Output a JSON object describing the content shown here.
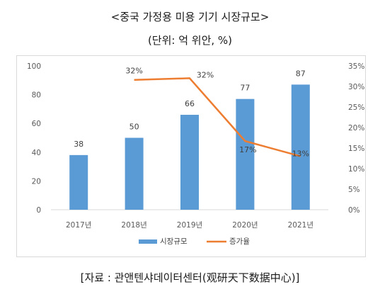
{
  "header": {
    "title": "<중국 가정용 미용 기기 시장규모>",
    "unit": "(단위: 억 위안, %)"
  },
  "footer": {
    "source": "[자료 : 관앤텐샤데이터센터(观研天下数据中心)]"
  },
  "colors": {
    "bar": "#5b9bd5",
    "line": "#ed7d31",
    "grid": "#d9d9d9"
  },
  "chart_data": {
    "type": "bar",
    "categories": [
      "2017년",
      "2018년",
      "2019년",
      "2020년",
      "2021년"
    ],
    "series": [
      {
        "name": "시장규모",
        "type": "bar",
        "axis": "left",
        "values": [
          38,
          50,
          66,
          77,
          87
        ],
        "labels": [
          "38",
          "50",
          "66",
          "77",
          "87"
        ]
      },
      {
        "name": "증가율",
        "type": "line",
        "axis": "right",
        "values": [
          null,
          31.6,
          32,
          16.7,
          13
        ],
        "labels": [
          null,
          "32%",
          "32%",
          "17%",
          "13%"
        ]
      }
    ],
    "y_left": {
      "min": 0,
      "max": 100,
      "step": 20,
      "ticks": [
        "0",
        "20",
        "40",
        "60",
        "80",
        "100"
      ]
    },
    "y_right": {
      "min": 0,
      "max": 35,
      "step": 5,
      "ticks": [
        "0%",
        "5%",
        "10%",
        "15%",
        "20%",
        "25%",
        "30%",
        "35%"
      ]
    },
    "grid": false,
    "legend_position": "bottom"
  }
}
